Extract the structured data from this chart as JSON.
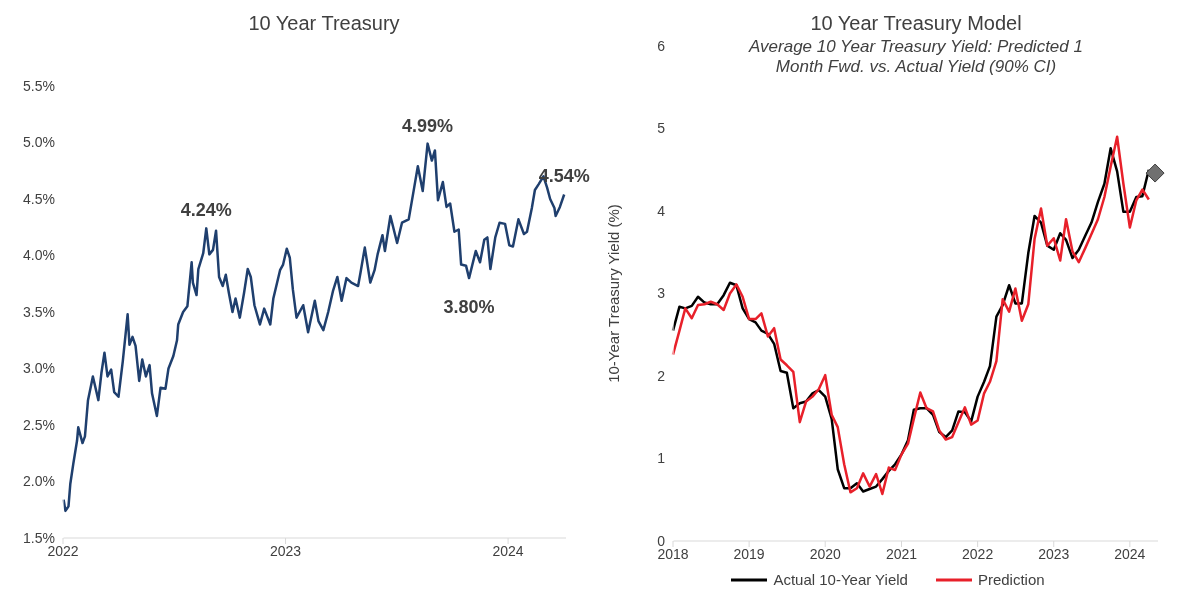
{
  "chart_data": [
    {
      "type": "line",
      "title": "10 Year Treasury",
      "x": [
        "2022-01-02",
        "2022-01-05",
        "2022-01-10",
        "2022-01-13",
        "2022-01-18",
        "2022-01-24",
        "2022-01-26",
        "2022-02-02",
        "2022-02-06",
        "2022-02-11",
        "2022-02-16",
        "2022-02-19",
        "2022-02-28",
        "2022-03-05",
        "2022-03-10",
        "2022-03-15",
        "2022-03-21",
        "2022-03-26",
        "2022-04-02",
        "2022-04-09",
        "2022-04-17",
        "2022-04-20",
        "2022-04-25",
        "2022-04-30",
        "2022-05-06",
        "2022-05-11",
        "2022-05-17",
        "2022-05-23",
        "2022-05-27",
        "2022-06-04",
        "2022-06-10",
        "2022-06-18",
        "2022-06-23",
        "2022-07-01",
        "2022-07-07",
        "2022-07-09",
        "2022-07-17",
        "2022-07-24",
        "2022-07-31",
        "2022-08-02",
        "2022-08-08",
        "2022-08-11",
        "2022-08-19",
        "2022-08-24",
        "2022-08-29",
        "2022-09-04",
        "2022-09-09",
        "2022-09-14",
        "2022-09-20",
        "2022-09-25",
        "2022-09-30",
        "2022-10-06",
        "2022-10-11",
        "2022-10-18",
        "2022-10-25",
        "2022-10-31",
        "2022-11-05",
        "2022-11-11",
        "2022-11-20",
        "2022-11-27",
        "2022-12-07",
        "2022-12-12",
        "2022-12-23",
        "2022-12-28",
        "2023-01-03",
        "2023-01-08",
        "2023-01-13",
        "2023-01-19",
        "2023-01-30",
        "2023-02-07",
        "2023-02-18",
        "2023-02-24",
        "2023-03-04",
        "2023-03-12",
        "2023-03-20",
        "2023-03-27",
        "2023-04-03",
        "2023-04-11",
        "2023-04-19",
        "2023-04-30",
        "2023-05-04",
        "2023-05-11",
        "2023-05-20",
        "2023-05-27",
        "2023-06-01",
        "2023-06-09",
        "2023-06-13",
        "2023-06-22",
        "2023-07-03",
        "2023-07-11",
        "2023-07-22",
        "2023-07-30",
        "2023-08-06",
        "2023-08-14",
        "2023-08-22",
        "2023-08-29",
        "2023-09-03",
        "2023-09-08",
        "2023-09-16",
        "2023-09-22",
        "2023-09-28",
        "2023-10-05",
        "2023-10-12",
        "2023-10-16",
        "2023-10-24",
        "2023-10-29",
        "2023-11-09",
        "2023-11-16",
        "2023-11-23",
        "2023-11-28",
        "2023-12-03",
        "2023-12-11",
        "2023-12-18",
        "2023-12-27",
        "2024-01-03",
        "2024-01-09",
        "2024-01-18",
        "2024-01-27",
        "2024-02-01",
        "2024-02-09",
        "2024-02-14",
        "2024-02-20",
        "2024-02-28",
        "2024-03-05",
        "2024-03-10",
        "2024-03-17",
        "2024-03-19",
        "2024-03-26",
        "2024-04-02"
      ],
      "series": [
        {
          "color": "#1f3f6e",
          "values": [
            1.84,
            1.74,
            1.78,
            1.98,
            2.16,
            2.36,
            2.48,
            2.34,
            2.4,
            2.72,
            2.85,
            2.93,
            2.72,
            2.96,
            3.14,
            2.93,
            2.99,
            2.79,
            2.75,
            3.06,
            3.48,
            3.21,
            3.28,
            3.2,
            2.89,
            3.08,
            2.93,
            3.03,
            2.78,
            2.58,
            2.83,
            2.82,
            3.0,
            3.11,
            3.25,
            3.39,
            3.5,
            3.55,
            3.94,
            3.76,
            3.65,
            3.88,
            4.02,
            4.24,
            4.01,
            4.05,
            4.22,
            3.81,
            3.73,
            3.83,
            3.67,
            3.5,
            3.62,
            3.45,
            3.67,
            3.88,
            3.81,
            3.56,
            3.39,
            3.53,
            3.39,
            3.62,
            3.87,
            3.92,
            4.06,
            3.98,
            3.7,
            3.45,
            3.56,
            3.32,
            3.6,
            3.42,
            3.34,
            3.5,
            3.69,
            3.81,
            3.6,
            3.8,
            3.76,
            3.73,
            3.85,
            4.07,
            3.76,
            3.87,
            4.01,
            4.18,
            4.04,
            4.35,
            4.11,
            4.29,
            4.32,
            4.57,
            4.79,
            4.57,
            4.99,
            4.84,
            4.93,
            4.49,
            4.65,
            4.43,
            4.46,
            4.21,
            4.23,
            3.92,
            3.91,
            3.8,
            4.04,
            3.94,
            4.14,
            4.16,
            3.88,
            4.16,
            4.29,
            4.28,
            4.09,
            4.08,
            4.32,
            4.19,
            4.21,
            4.42,
            4.58,
            4.63,
            4.7,
            4.6,
            4.5,
            4.42,
            4.35,
            4.43,
            4.54
          ]
        }
      ],
      "xlim": [
        "2022-01-01",
        "2024-04-05"
      ],
      "xticks": [
        "2022",
        "2023",
        "2024"
      ],
      "ylim": [
        1.5,
        5.5
      ],
      "yticks": [
        {
          "value": 1.5,
          "label": "1.5%"
        },
        {
          "value": 2.0,
          "label": "2.0%"
        },
        {
          "value": 2.5,
          "label": "2.5%"
        },
        {
          "value": 3.0,
          "label": "3.0%"
        },
        {
          "value": 3.5,
          "label": "3.5%"
        },
        {
          "value": 4.0,
          "label": "4.0%"
        },
        {
          "value": 4.5,
          "label": "4.5%"
        },
        {
          "value": 5.0,
          "label": "5.0%"
        },
        {
          "value": 5.5,
          "label": "5.5%"
        }
      ],
      "annotations": [
        {
          "text": "4.24%",
          "x": "2022-08-24",
          "y": 4.24
        },
        {
          "text": "4.99%",
          "x": "2023-08-22",
          "y": 4.99
        },
        {
          "text": "3.80%",
          "x": "2023-10-29",
          "y": 3.8
        },
        {
          "text": "4.54%",
          "x": "2024-04-02",
          "y": 4.54
        }
      ]
    },
    {
      "type": "line",
      "title": "10 Year Treasury Model",
      "subtitle": "Average 10 Year Treasury Yield: Predicted 1 Month Fwd. vs. Actual Yield (90% CI)",
      "ylabel": "10-Year Treasury Yield (%)",
      "x": [
        "2018-01",
        "2018-02",
        "2018-03",
        "2018-04",
        "2018-05",
        "2018-06",
        "2018-07",
        "2018-08",
        "2018-09",
        "2018-10",
        "2018-11",
        "2018-12",
        "2019-01",
        "2019-02",
        "2019-03",
        "2019-04",
        "2019-05",
        "2019-06",
        "2019-07",
        "2019-08",
        "2019-09",
        "2019-10",
        "2019-11",
        "2019-12",
        "2020-01",
        "2020-02",
        "2020-03",
        "2020-04",
        "2020-05",
        "2020-06",
        "2020-07",
        "2020-08",
        "2020-09",
        "2020-10",
        "2020-11",
        "2020-12",
        "2021-01",
        "2021-02",
        "2021-03",
        "2021-04",
        "2021-05",
        "2021-06",
        "2021-07",
        "2021-08",
        "2021-09",
        "2021-10",
        "2021-11",
        "2021-12",
        "2022-01",
        "2022-02",
        "2022-03",
        "2022-04",
        "2022-05",
        "2022-06",
        "2022-07",
        "2022-08",
        "2022-09",
        "2022-10",
        "2022-11",
        "2022-12",
        "2023-01",
        "2023-02",
        "2023-03",
        "2023-04",
        "2023-05",
        "2023-06",
        "2023-07",
        "2023-08",
        "2023-09",
        "2023-10",
        "2023-11",
        "2023-12",
        "2024-01",
        "2024-02",
        "2024-03",
        "2024-04"
      ],
      "series": [
        {
          "name": "Actual 10-Year Yield",
          "color": "#000000",
          "values": [
            2.55,
            2.84,
            2.82,
            2.85,
            2.96,
            2.89,
            2.87,
            2.87,
            2.98,
            3.13,
            3.1,
            2.82,
            2.69,
            2.65,
            2.55,
            2.51,
            2.39,
            2.06,
            2.04,
            1.61,
            1.67,
            1.69,
            1.79,
            1.83,
            1.75,
            1.48,
            0.87,
            0.64,
            0.64,
            0.7,
            0.6,
            0.63,
            0.66,
            0.75,
            0.85,
            0.93,
            1.05,
            1.22,
            1.59,
            1.61,
            1.61,
            1.53,
            1.32,
            1.26,
            1.34,
            1.57,
            1.56,
            1.45,
            1.75,
            1.93,
            2.12,
            2.72,
            2.86,
            3.1,
            2.88,
            2.88,
            3.49,
            3.94,
            3.86,
            3.58,
            3.53,
            3.73,
            3.65,
            3.43,
            3.53,
            3.7,
            3.86,
            4.11,
            4.33,
            4.76,
            4.48,
            3.99,
            3.99,
            4.17,
            4.18,
            4.5
          ]
        },
        {
          "name": "Prediction",
          "color": "#e8202a",
          "values": [
            2.26,
            2.55,
            2.82,
            2.7,
            2.86,
            2.87,
            2.9,
            2.87,
            2.8,
            3.0,
            3.11,
            2.96,
            2.69,
            2.69,
            2.76,
            2.48,
            2.58,
            2.2,
            2.13,
            2.05,
            1.44,
            1.69,
            1.75,
            1.84,
            2.01,
            1.53,
            1.38,
            0.93,
            0.59,
            0.64,
            0.82,
            0.66,
            0.81,
            0.57,
            0.89,
            0.86,
            1.05,
            1.18,
            1.48,
            1.8,
            1.61,
            1.57,
            1.34,
            1.23,
            1.26,
            1.44,
            1.62,
            1.41,
            1.46,
            1.79,
            1.93,
            2.18,
            2.93,
            2.78,
            3.06,
            2.67,
            2.87,
            3.66,
            4.03,
            3.58,
            3.67,
            3.4,
            3.9,
            3.51,
            3.38,
            3.55,
            3.72,
            3.9,
            4.17,
            4.54,
            4.9,
            4.33,
            3.8,
            4.13,
            4.26,
            4.14
          ]
        },
        {
          "type": "scatter",
          "color": "#707070",
          "marker": "diamond",
          "x": [
            "2024-05"
          ],
          "values": [
            4.46
          ]
        }
      ],
      "xlim": [
        "2018-01-01",
        "2024-05-15"
      ],
      "xticks": [
        "2018",
        "2019",
        "2020",
        "2021",
        "2022",
        "2023",
        "2024"
      ],
      "ylim": [
        0,
        6
      ],
      "yticks": [
        0,
        1,
        2,
        3,
        4,
        5,
        6
      ],
      "legend": "bottom"
    }
  ]
}
